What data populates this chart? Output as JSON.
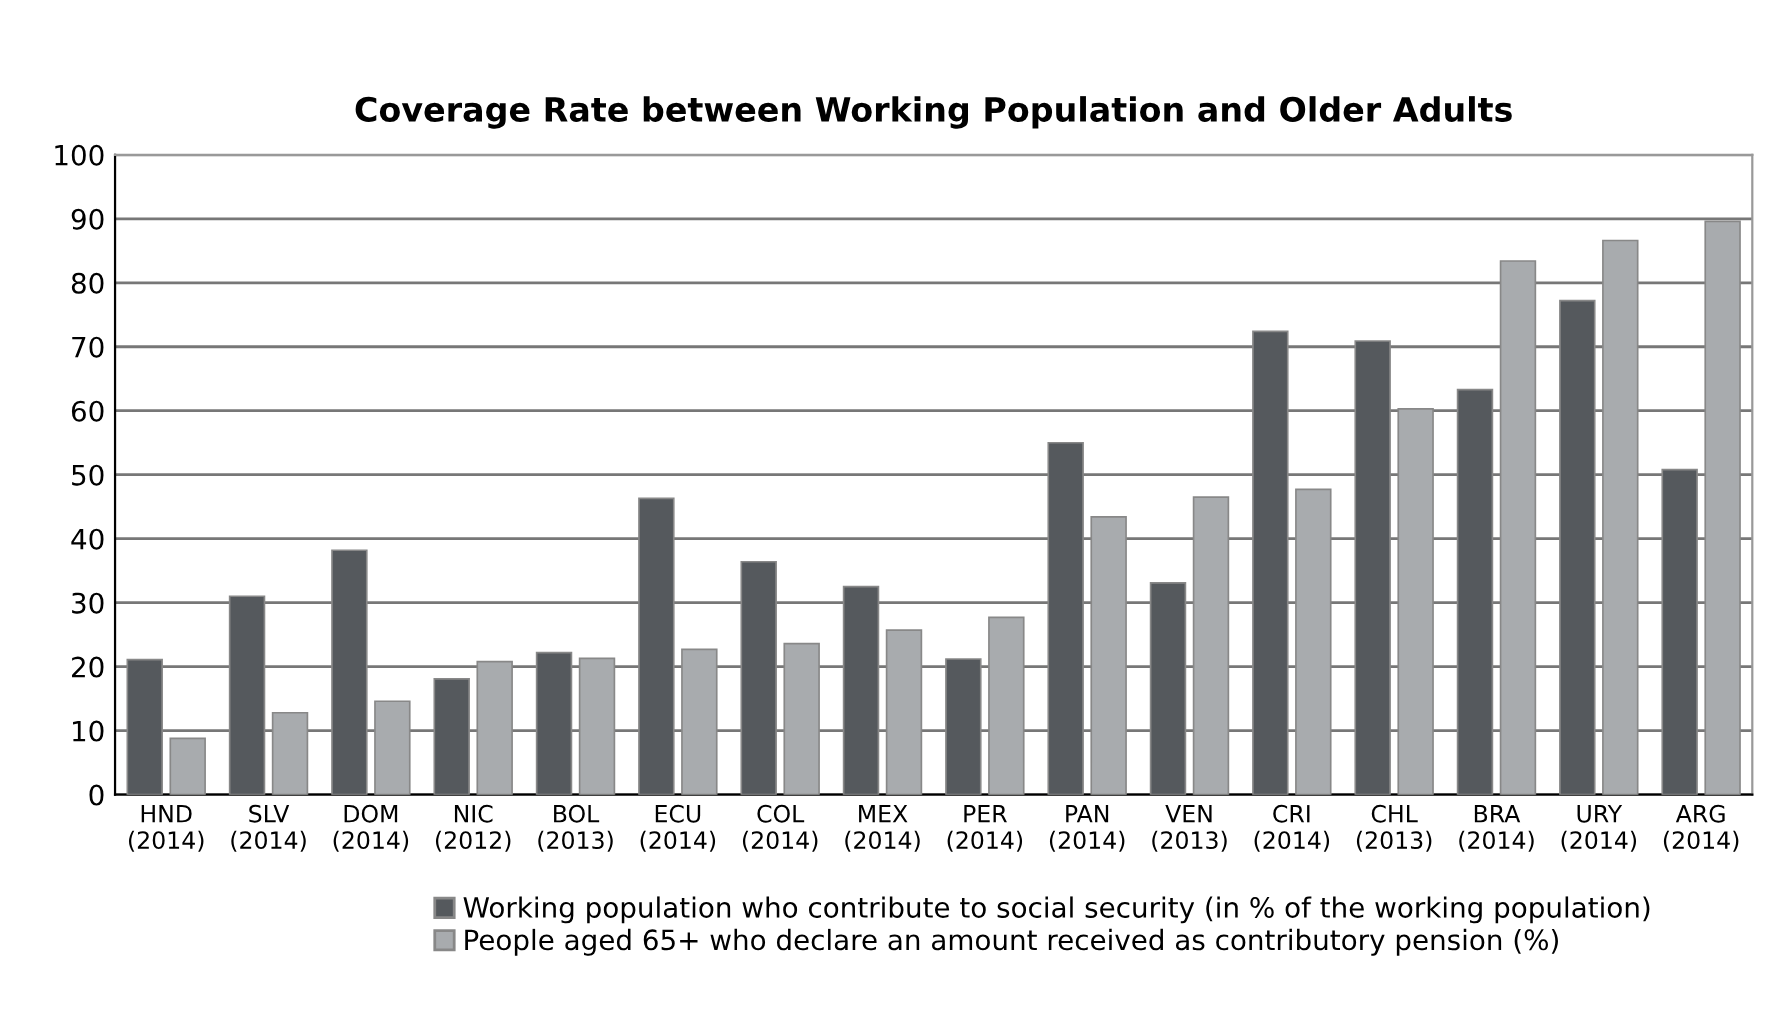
{
  "chart_data": {
    "type": "bar",
    "title": "Coverage Rate between Working Population and Older Adults",
    "categories": [
      "HND\n(2014)",
      "SLV\n(2014)",
      "DOM\n(2014)",
      "NIC\n(2012)",
      "BOL\n(2013)",
      "ECU\n(2014)",
      "COL\n(2014)",
      "MEX\n(2014)",
      "PER\n(2014)",
      "PAN\n(2014)",
      "VEN\n(2013)",
      "CRI\n(2014)",
      "CHL\n(2013)",
      "BRA\n(2014)",
      "URY\n(2014)",
      "ARG\n(2014)"
    ],
    "series": [
      {
        "name": "Working population who contribute to social security (in % of the working population)",
        "color": "#55595d",
        "values": [
          21.1,
          31,
          38.2,
          18.1,
          22.2,
          46.3,
          36.4,
          32.5,
          21.2,
          55,
          33.1,
          72.4,
          70.9,
          63.3,
          77.2,
          50.8
        ]
      },
      {
        "name": "People aged 65+ who declare an amount received as contributory pension (%)",
        "color": "#a8abae",
        "values": [
          8.8,
          12.8,
          14.6,
          20.8,
          21.3,
          22.7,
          23.6,
          25.7,
          27.7,
          43.4,
          46.5,
          47.7,
          60.3,
          83.4,
          86.6,
          89.6
        ]
      }
    ],
    "ylim": [
      0,
      100
    ],
    "yticks": [
      0,
      10,
      20,
      30,
      40,
      50,
      60,
      70,
      80,
      90,
      100
    ],
    "grid": "y",
    "legend": "bottom"
  }
}
